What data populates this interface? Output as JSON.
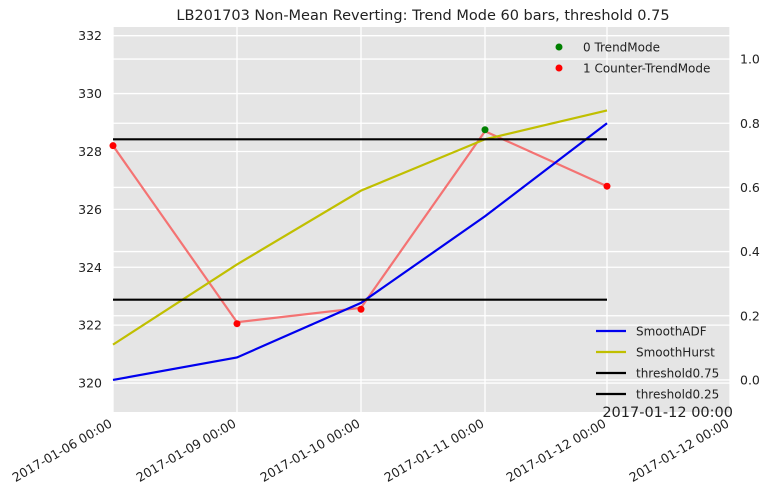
{
  "chart_data": {
    "type": "line",
    "title": "LB201703 Non-Mean Reverting: Trend Mode 60 bars, threshold 0.75",
    "x_categories": [
      "2017-01-06 00:00",
      "2017-01-09 00:00",
      "2017-01-10 00:00",
      "2017-01-11 00:00",
      "2017-01-12 00:00",
      "2017-01-12 00:00"
    ],
    "corner_label": "2017-01-12 00:00",
    "left_axis": {
      "ylim": [
        319,
        332.3
      ],
      "ticks": [
        320,
        322,
        324,
        326,
        328,
        330,
        332
      ],
      "tick_labels": [
        "320",
        "322",
        "324",
        "326",
        "328",
        "330",
        "332"
      ]
    },
    "right_axis": {
      "ylim": [
        -0.1,
        1.1
      ],
      "ticks": [
        0.0,
        0.2,
        0.4,
        0.6,
        0.8,
        1.0
      ],
      "tick_labels": [
        "0.0",
        "0.2",
        "0.4",
        "0.6",
        "0.8",
        "1.0"
      ]
    },
    "price_series": {
      "axis": "left",
      "color": "#f47373",
      "x_index": [
        0,
        1,
        2,
        3,
        4
      ],
      "values": [
        328.2,
        322.1,
        322.6,
        328.7,
        326.8
      ]
    },
    "scatter_series": [
      {
        "name": "0 TrendMode",
        "color": "#008000",
        "axis": "left",
        "x_index": [
          3
        ],
        "values": [
          328.75
        ]
      },
      {
        "name": "1 Counter-TrendMode",
        "color": "#ff0000",
        "axis": "left",
        "x_index": [
          0,
          1,
          2,
          4
        ],
        "values": [
          328.2,
          322.05,
          322.55,
          326.8
        ]
      }
    ],
    "line_series": [
      {
        "name": "SmoothADF",
        "color": "#0000ee",
        "axis": "right",
        "x_index": [
          0,
          1,
          2,
          3,
          4
        ],
        "values": [
          0.0,
          0.07,
          0.24,
          0.51,
          0.8
        ]
      },
      {
        "name": "SmoothHurst",
        "color": "#c0bf00",
        "axis": "right",
        "x_index": [
          0,
          1,
          2,
          3,
          4
        ],
        "values": [
          0.11,
          0.36,
          0.59,
          0.75,
          0.84
        ]
      },
      {
        "name": "threshold0.75",
        "color": "#000000",
        "axis": "right",
        "x_index": [
          0,
          4
        ],
        "values": [
          0.75,
          0.75
        ]
      },
      {
        "name": "threshold0.25",
        "color": "#000000",
        "axis": "right",
        "x_index": [
          0,
          4
        ],
        "values": [
          0.25,
          0.25
        ]
      }
    ],
    "background": "#e5e5e5",
    "grid": true,
    "legends": {
      "scatter": "upper-right",
      "lines": "lower-right"
    }
  }
}
